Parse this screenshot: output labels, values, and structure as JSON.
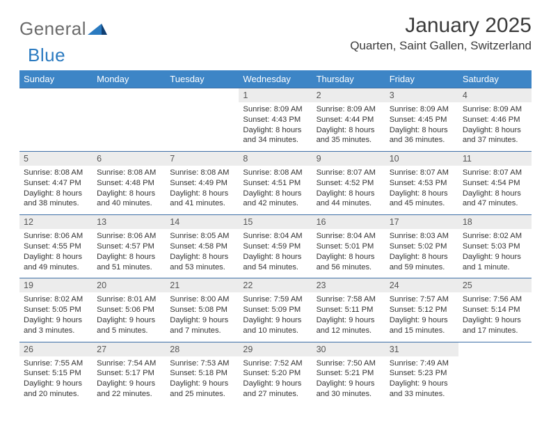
{
  "brand": {
    "general": "General",
    "blue": "Blue"
  },
  "title": "January 2025",
  "location": "Quarten, Saint Gallen, Switzerland",
  "colors": {
    "header_bg": "#3d85c6",
    "header_text": "#ffffff",
    "daynum_bg": "#ececec",
    "row_border": "#3d6ea6",
    "brand_gray": "#6b6b6b",
    "brand_blue": "#2a7ac0",
    "text_color": "#333333",
    "title_color": "#3a3a3a"
  },
  "weekday_labels": [
    "Sunday",
    "Monday",
    "Tuesday",
    "Wednesday",
    "Thursday",
    "Friday",
    "Saturday"
  ],
  "weeks": [
    [
      null,
      null,
      null,
      {
        "n": "1",
        "sr": "8:09 AM",
        "ss": "4:43 PM",
        "dh": "8",
        "dm": "34"
      },
      {
        "n": "2",
        "sr": "8:09 AM",
        "ss": "4:44 PM",
        "dh": "8",
        "dm": "35"
      },
      {
        "n": "3",
        "sr": "8:09 AM",
        "ss": "4:45 PM",
        "dh": "8",
        "dm": "36"
      },
      {
        "n": "4",
        "sr": "8:09 AM",
        "ss": "4:46 PM",
        "dh": "8",
        "dm": "37"
      }
    ],
    [
      {
        "n": "5",
        "sr": "8:08 AM",
        "ss": "4:47 PM",
        "dh": "8",
        "dm": "38"
      },
      {
        "n": "6",
        "sr": "8:08 AM",
        "ss": "4:48 PM",
        "dh": "8",
        "dm": "40"
      },
      {
        "n": "7",
        "sr": "8:08 AM",
        "ss": "4:49 PM",
        "dh": "8",
        "dm": "41"
      },
      {
        "n": "8",
        "sr": "8:08 AM",
        "ss": "4:51 PM",
        "dh": "8",
        "dm": "42"
      },
      {
        "n": "9",
        "sr": "8:07 AM",
        "ss": "4:52 PM",
        "dh": "8",
        "dm": "44"
      },
      {
        "n": "10",
        "sr": "8:07 AM",
        "ss": "4:53 PM",
        "dh": "8",
        "dm": "45"
      },
      {
        "n": "11",
        "sr": "8:07 AM",
        "ss": "4:54 PM",
        "dh": "8",
        "dm": "47"
      }
    ],
    [
      {
        "n": "12",
        "sr": "8:06 AM",
        "ss": "4:55 PM",
        "dh": "8",
        "dm": "49"
      },
      {
        "n": "13",
        "sr": "8:06 AM",
        "ss": "4:57 PM",
        "dh": "8",
        "dm": "51"
      },
      {
        "n": "14",
        "sr": "8:05 AM",
        "ss": "4:58 PM",
        "dh": "8",
        "dm": "53"
      },
      {
        "n": "15",
        "sr": "8:04 AM",
        "ss": "4:59 PM",
        "dh": "8",
        "dm": "54"
      },
      {
        "n": "16",
        "sr": "8:04 AM",
        "ss": "5:01 PM",
        "dh": "8",
        "dm": "56"
      },
      {
        "n": "17",
        "sr": "8:03 AM",
        "ss": "5:02 PM",
        "dh": "8",
        "dm": "59"
      },
      {
        "n": "18",
        "sr": "8:02 AM",
        "ss": "5:03 PM",
        "dh": "9",
        "dm": "1"
      }
    ],
    [
      {
        "n": "19",
        "sr": "8:02 AM",
        "ss": "5:05 PM",
        "dh": "9",
        "dm": "3"
      },
      {
        "n": "20",
        "sr": "8:01 AM",
        "ss": "5:06 PM",
        "dh": "9",
        "dm": "5"
      },
      {
        "n": "21",
        "sr": "8:00 AM",
        "ss": "5:08 PM",
        "dh": "9",
        "dm": "7"
      },
      {
        "n": "22",
        "sr": "7:59 AM",
        "ss": "5:09 PM",
        "dh": "9",
        "dm": "10"
      },
      {
        "n": "23",
        "sr": "7:58 AM",
        "ss": "5:11 PM",
        "dh": "9",
        "dm": "12"
      },
      {
        "n": "24",
        "sr": "7:57 AM",
        "ss": "5:12 PM",
        "dh": "9",
        "dm": "15"
      },
      {
        "n": "25",
        "sr": "7:56 AM",
        "ss": "5:14 PM",
        "dh": "9",
        "dm": "17"
      }
    ],
    [
      {
        "n": "26",
        "sr": "7:55 AM",
        "ss": "5:15 PM",
        "dh": "9",
        "dm": "20"
      },
      {
        "n": "27",
        "sr": "7:54 AM",
        "ss": "5:17 PM",
        "dh": "9",
        "dm": "22"
      },
      {
        "n": "28",
        "sr": "7:53 AM",
        "ss": "5:18 PM",
        "dh": "9",
        "dm": "25"
      },
      {
        "n": "29",
        "sr": "7:52 AM",
        "ss": "5:20 PM",
        "dh": "9",
        "dm": "27"
      },
      {
        "n": "30",
        "sr": "7:50 AM",
        "ss": "5:21 PM",
        "dh": "9",
        "dm": "30"
      },
      {
        "n": "31",
        "sr": "7:49 AM",
        "ss": "5:23 PM",
        "dh": "9",
        "dm": "33"
      },
      null
    ]
  ],
  "labels": {
    "sunrise": "Sunrise:",
    "sunset": "Sunset:",
    "daylight": "Daylight:",
    "hours": "hours",
    "hour": "hour",
    "and": "and",
    "minutes": "minutes.",
    "minute": "minute."
  }
}
